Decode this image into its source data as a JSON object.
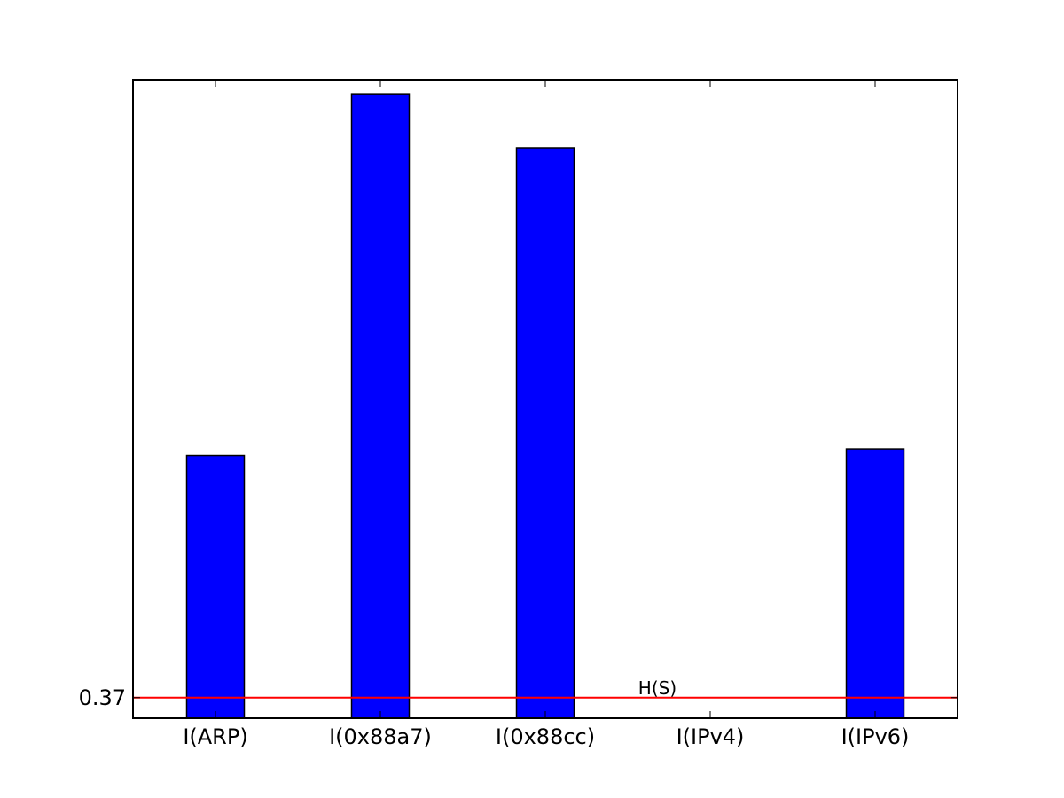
{
  "chart_data": {
    "type": "bar",
    "categories": [
      "I(ARP)",
      "I(0x88a7)",
      "I(0x88cc)",
      "I(IPv4)",
      "I(IPv6)"
    ],
    "values": [
      0.59,
      0.918,
      0.869,
      0.347,
      0.596
    ],
    "ylim": [
      0.3513,
      0.931
    ],
    "yticks": [
      0.37
    ],
    "ytick_labels": [
      "0.37"
    ],
    "grid": false,
    "bar_color": "#0000ff",
    "annotation": {
      "label": "H(S)",
      "value": 0.37,
      "color": "#ff0000"
    }
  }
}
